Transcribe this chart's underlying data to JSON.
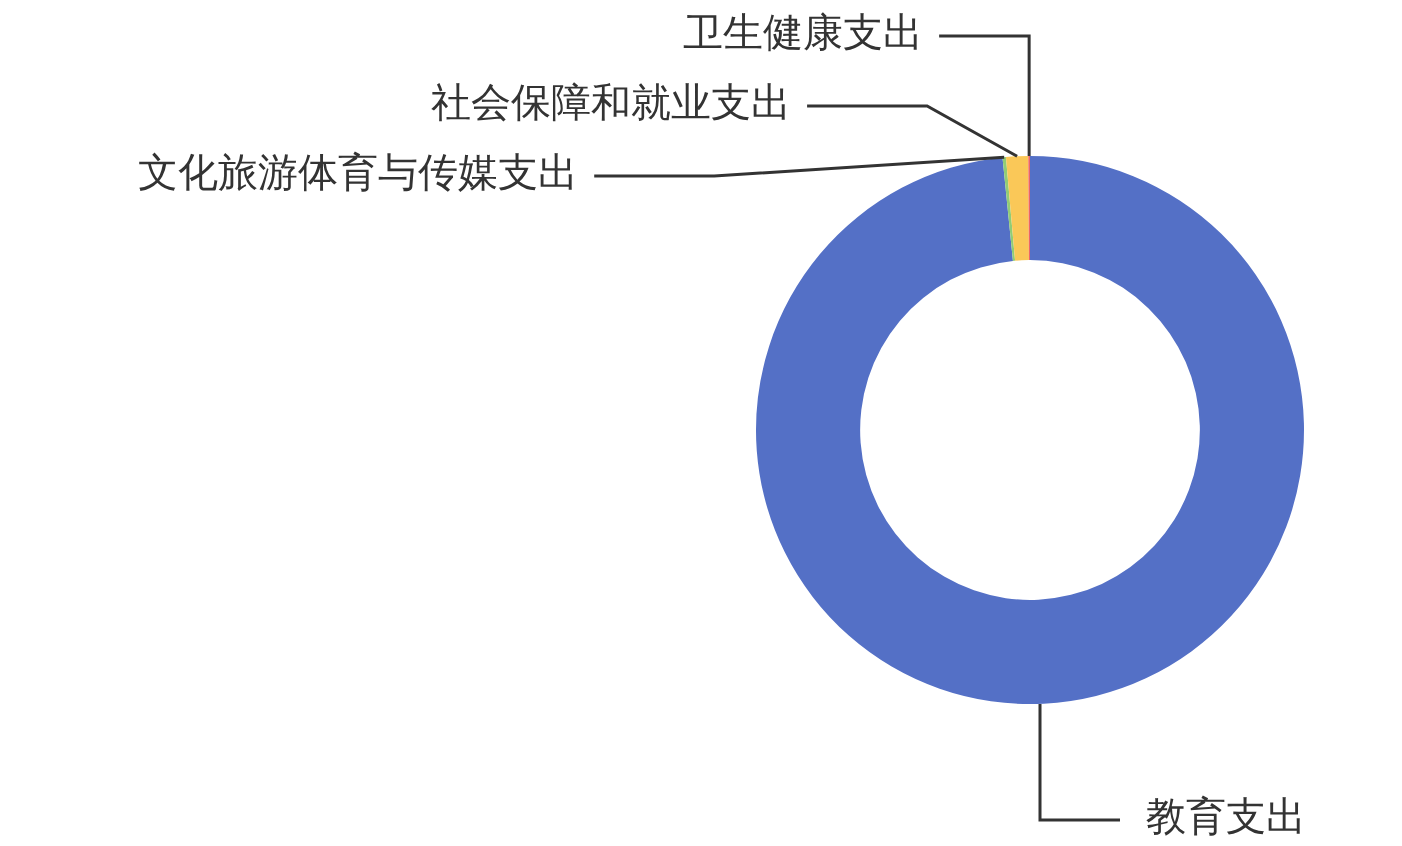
{
  "chart_data": {
    "type": "donut",
    "categories": [
      "教育支出",
      "文化旅游体育与传媒支出",
      "社会保障和就业支出",
      "卫生健康支出"
    ],
    "values": [
      98.4,
      0.2,
      1.3,
      0.1
    ],
    "colors": [
      "#5470c6",
      "#91cc75",
      "#fac858",
      "#ee6666"
    ],
    "legend": false
  }
}
